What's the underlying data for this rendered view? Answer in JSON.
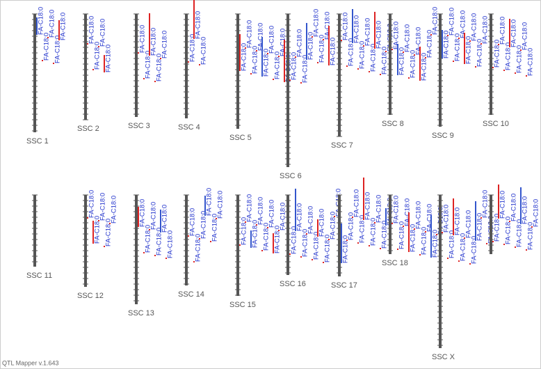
{
  "chromosomes": [
    {
      "name": "SSC 1",
      "qtls": [
        "FA-C18:0",
        "FA-C18:0",
        "FA-C18:0",
        "FA-C18:0",
        "FA-C18:0"
      ]
    },
    {
      "name": "SSC 2",
      "qtls": [
        "FA-C18:0",
        "FA-C18:0",
        "FA-C18:0",
        "FA-C18:0"
      ]
    },
    {
      "name": "SSC 3",
      "qtls": [
        "FA-C18:0",
        "FA-C18:0",
        "FA-C18:0",
        "FA-C18:0",
        "FA-C18:0"
      ]
    },
    {
      "name": "SSC 4",
      "qtls": [
        "FA-C18:0",
        "FA-C18:0",
        "FA-C18:0"
      ]
    },
    {
      "name": "SSC 5",
      "qtls": [
        "FA-C18:0",
        "FA-C18:0",
        "FA-C18:0",
        "FA-C18:0",
        "FA-C18:0",
        "FA-C18:0",
        "FA-C18:0",
        "FA-C18:0",
        "FA-C18:0"
      ]
    },
    {
      "name": "SSC 6",
      "qtls": [
        "FA-C18:0",
        "FA-C18:0",
        "FA-C18:0",
        "FA-C18:0",
        "FA-C18:0",
        "FA-C18:0",
        "FA-C18:0",
        "FA-C18:0"
      ]
    },
    {
      "name": "SSC 7",
      "qtls": [
        "FA-C18:0",
        "FA-C18:0",
        "FA-C18:0",
        "FA-C18:0",
        "FA-C18:0",
        "FA-C18:0",
        "FA-C18:0",
        "FA-C18:0",
        "FA-C18:0"
      ]
    },
    {
      "name": "SSC 8",
      "qtls": [
        "FA-C18:0",
        "FA-C18:0",
        "FA-C18:0",
        "FA-C18:0",
        "FA-C18:0",
        "FA-C18:0",
        "FA-C18:0",
        "FA-C18:0"
      ]
    },
    {
      "name": "SSC 9",
      "qtls": [
        "FA-C18:0",
        "FA-C18:0",
        "FA-C18:0",
        "FA-C18:0",
        "FA-C18:0",
        "FA-C18:0",
        "FA-C18:0",
        "FA-C18:0"
      ]
    },
    {
      "name": "SSC 10",
      "qtls": [
        "FA-C18:0",
        "FA-C18:0",
        "FA-C18:0",
        "FA-C18:0",
        "FA-C18:0",
        "FA-C18:0",
        "FA-C18:0"
      ]
    },
    {
      "name": "SSC 11",
      "qtls": []
    },
    {
      "name": "SSC 12",
      "qtls": [
        "FA-C18:0",
        "FA-C18:0",
        "FA-C18:0",
        "FA-C18:0",
        "FA-C18:0"
      ]
    },
    {
      "name": "SSC 13",
      "qtls": [
        "FA-C18:0",
        "FA-C18:0",
        "FA-C18:0",
        "FA-C18:0",
        "FA-C18:0",
        "FA-C18:0"
      ]
    },
    {
      "name": "SSC 14",
      "qtls": [
        "FA-C18:0",
        "FA-C18:0",
        "FA-C18:0",
        "FA-C18:0",
        "FA-C18:0",
        "FA-C18:0"
      ]
    },
    {
      "name": "SSC 15",
      "qtls": [
        "FA-C18:0",
        "FA-C18:0",
        "FA-C18:0",
        "FA-C18:0",
        "FA-C18:0",
        "FA-C18:0",
        "FA-C18:0",
        "FA-C18:0"
      ]
    },
    {
      "name": "SSC 16",
      "qtls": [
        "FA-C18:0",
        "FA-C18:0",
        "FA-C18:0",
        "FA-C18:0",
        "FA-C18:0",
        "FA-C18:0",
        "FA-C18:0",
        "FA-C18:0",
        "FA-C18:0"
      ]
    },
    {
      "name": "SSC 17",
      "qtls": [
        "FA-C18:0",
        "FA-C18:0",
        "FA-C18:0",
        "FA-C18:0",
        "FA-C18:0",
        "FA-C18:0",
        "FA-C18:0",
        "FA-C18:0",
        "FA-C18:0"
      ]
    },
    {
      "name": "SSC 18",
      "qtls": [
        "FA-C18:0",
        "FA-C18:0",
        "FA-C18:0",
        "FA-C18:0",
        "FA-C18:0",
        "FA-C18:0",
        "FA-C18:0",
        "FA-C18:0",
        "FA-C18:0"
      ]
    },
    {
      "name": "SSC X",
      "qtls": [
        "FA-C18:0",
        "FA-C18:0",
        "FA-C18:0",
        "FA-C18:0",
        "FA-C18:0",
        "FA-C18:0",
        "FA-C18:0",
        "FA-C18:0",
        "FA-C18:0"
      ]
    },
    {
      "qtls": [
        "FA-C18:0",
        "FA-C18:0",
        "FA-C18:0",
        "FA-C18:0",
        "FA-C18:0",
        "FA-C18:0",
        "FA-C18:0",
        "FA-C18:0"
      ]
    }
  ],
  "footer": "QTL Mapper v.1.643"
}
